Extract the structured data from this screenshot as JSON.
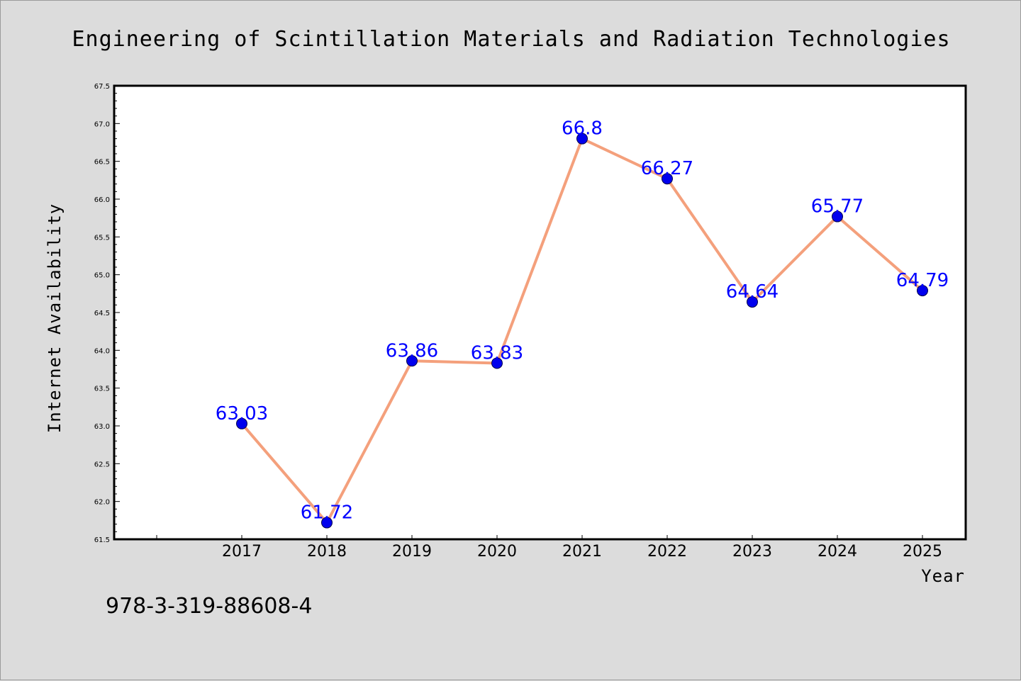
{
  "chart_data": {
    "type": "line",
    "title": "Engineering of Scintillation Materials and Radiation Technologies",
    "xlabel": "Year",
    "ylabel": "Internet Availability",
    "categories": [
      "2017",
      "2018",
      "2019",
      "2020",
      "2021",
      "2022",
      "2023",
      "2024",
      "2025"
    ],
    "series": [
      {
        "values": [
          63.03,
          61.72,
          63.86,
          63.83,
          66.8,
          66.27,
          64.64,
          65.77,
          64.79
        ],
        "data_labels": [
          "63.03",
          "61.72",
          "63.86",
          "63.83",
          "66.8",
          "66.27",
          "64.64",
          "65.77",
          "64.79"
        ],
        "line_color": "#f4a07c",
        "marker_color": "#0000ee"
      }
    ],
    "ylim": [
      61.5,
      67.5
    ],
    "yticks": [
      "61.5",
      "62.0",
      "62.5",
      "63.0",
      "63.5",
      "64.0",
      "64.5",
      "65.0",
      "65.5",
      "66.0",
      "66.5",
      "67.0",
      "67.5"
    ],
    "grid": false,
    "legend": false
  },
  "footer_code": "978-3-319-88608-4",
  "colors": {
    "background": "#dcdcdc",
    "plot_background": "#ffffff",
    "data_label": "#0000ff"
  }
}
